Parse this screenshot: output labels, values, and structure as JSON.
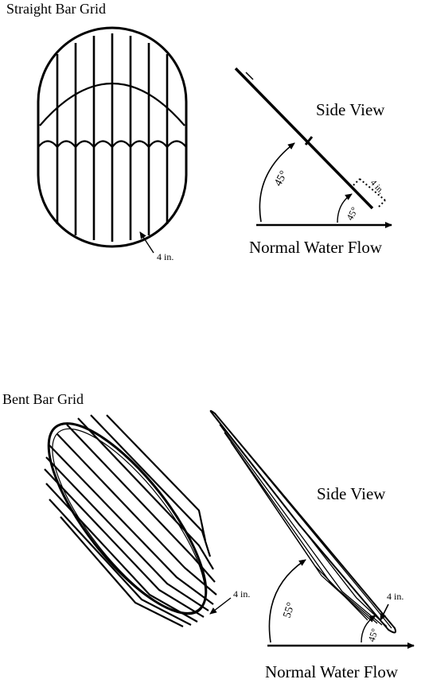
{
  "straight": {
    "title": "Straight Bar Grid",
    "side_view": "Side View",
    "flow": "Normal Water Flow",
    "spacing": "4 in.",
    "angle_main": "45°",
    "angle_small": "45°",
    "spacing_side": "4 in."
  },
  "bent": {
    "title": "Bent Bar Grid",
    "side_view": "Side View",
    "flow": "Normal Water Flow",
    "spacing": "4 in.",
    "angle_main": "55°",
    "angle_small": "45°",
    "spacing_side": "4 in."
  }
}
